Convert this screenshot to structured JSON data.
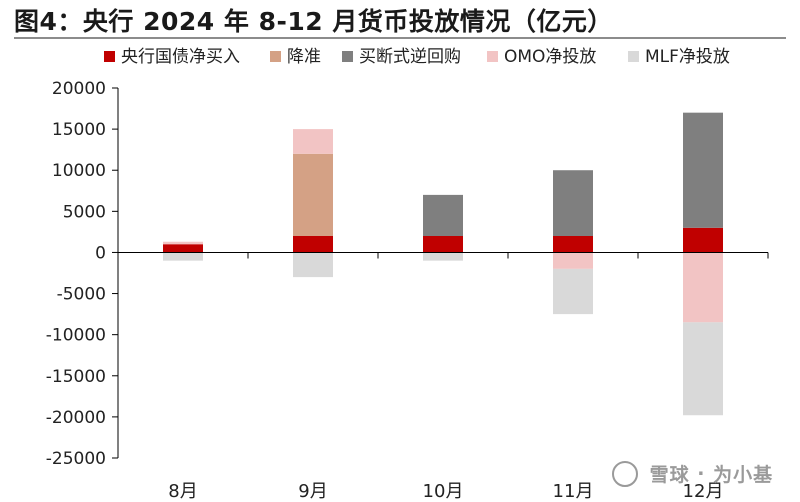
{
  "title": "图4：央行 2024 年 8-12 月货币投放情况（亿元）",
  "watermark": {
    "logo": "雪球",
    "separator": "·",
    "author": "为小基"
  },
  "chart_data": {
    "type": "bar",
    "stacked": true,
    "title": "图4：央行 2024 年 8-12 月货币投放情况（亿元）",
    "xlabel": "",
    "ylabel": "",
    "categories": [
      "8月",
      "9月",
      "10月",
      "11月",
      "12月"
    ],
    "ylim": [
      -25000,
      20000
    ],
    "yticks": [
      20000,
      15000,
      10000,
      5000,
      0,
      -5000,
      -10000,
      -15000,
      -20000,
      -25000
    ],
    "ytick_labels": [
      "20000",
      "15000",
      "10000",
      "5000",
      "0",
      "-5000",
      "-10000",
      "-15000",
      "-20000",
      "-25000"
    ],
    "grid": false,
    "legend_position": "top",
    "series": [
      {
        "name": "央行国债净买入",
        "color": "#c00000",
        "values": [
          1000,
          2000,
          2000,
          2000,
          3000
        ]
      },
      {
        "name": "降准",
        "color": "#d4a185",
        "values": [
          0,
          10000,
          0,
          0,
          0
        ]
      },
      {
        "name": "买断式逆回购",
        "color": "#7f7f7f",
        "values": [
          0,
          0,
          5000,
          8000,
          14000
        ]
      },
      {
        "name": "OMO净投放",
        "color": "#f2c4c4",
        "values": [
          300,
          3000,
          0,
          -2000,
          -8500
        ]
      },
      {
        "name": "MLF净投放",
        "color": "#d9d9d9",
        "values": [
          -1000,
          -3000,
          -1000,
          -5500,
          -11300
        ]
      }
    ]
  }
}
